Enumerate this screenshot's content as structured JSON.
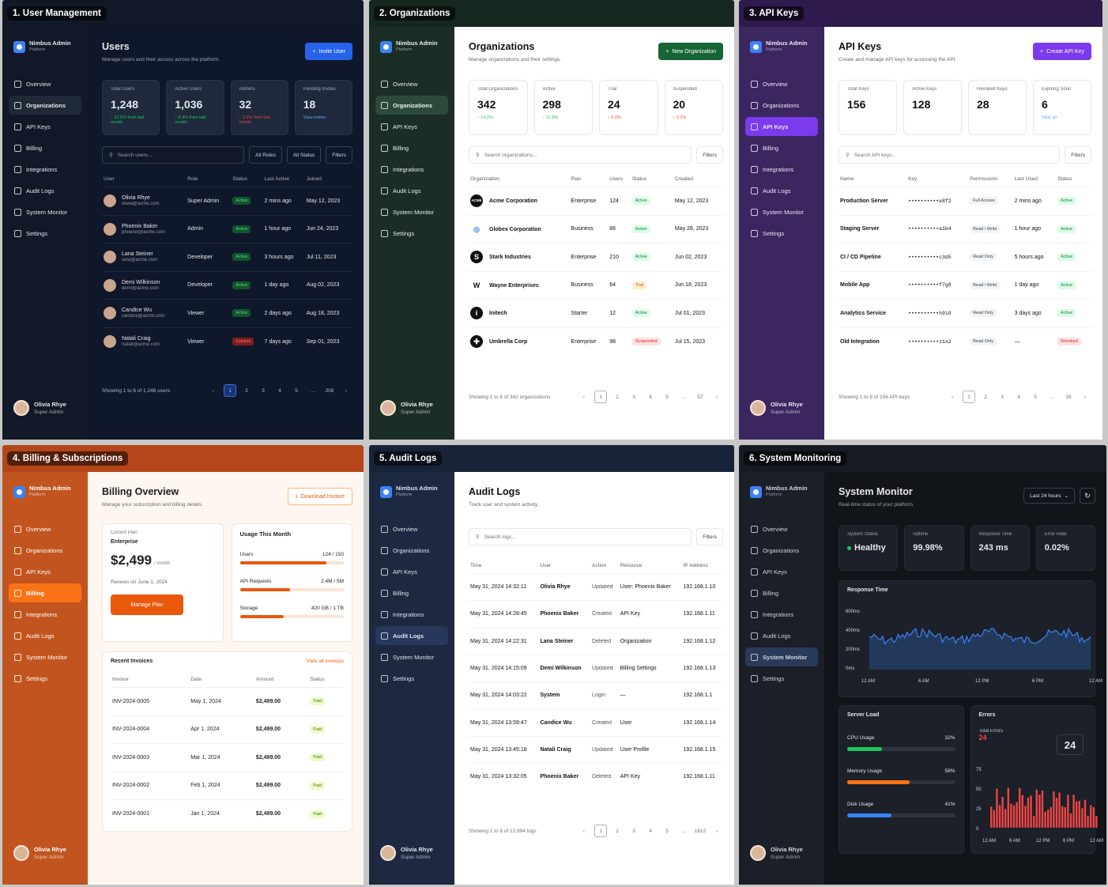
{
  "common": {
    "brand": "Nimbus Admin",
    "brand_sub": "Platform",
    "user_name": "Olivia Rhye",
    "user_role": "Super Admin",
    "nav": [
      "Overview",
      "Organizations",
      "API Keys",
      "Billing",
      "Integrations",
      "Audit Logs",
      "System Monitor",
      "Settings"
    ]
  },
  "p1": {
    "tag": "1. User Management",
    "title": "Users",
    "subtitle": "Manage users and their access across the platform.",
    "button": "Invite User",
    "stats": [
      {
        "label": "Total Users",
        "value": "1,248",
        "delta": "↑ 12.5% from last month"
      },
      {
        "label": "Active Users",
        "value": "1,036",
        "delta": "↑ 8.3% from last month"
      },
      {
        "label": "Admins",
        "value": "32",
        "delta": "↓ 3.1% from last month"
      },
      {
        "label": "Pending Invites",
        "value": "18",
        "delta": "View invites"
      }
    ],
    "search": "Search users...",
    "f1": "All Roles",
    "f2": "All Status",
    "f3": "Filters",
    "cols": [
      "User",
      "Role",
      "Status",
      "Last Active",
      "Joined"
    ],
    "rows": [
      [
        "Olivia Rhye",
        "olivia@acme.com",
        "Super Admin",
        "Active",
        "2 mins ago",
        "May 12, 2023"
      ],
      [
        "Phoenix Baker",
        "phoenix@acme.com",
        "Admin",
        "Active",
        "1 hour ago",
        "Jun 24, 2023"
      ],
      [
        "Lana Steiner",
        "lana@acme.com",
        "Developer",
        "Active",
        "3 hours ago",
        "Jul 11, 2023"
      ],
      [
        "Demi Wilkinson",
        "demi@acme.com",
        "Developer",
        "Active",
        "1 day ago",
        "Aug 02, 2023"
      ],
      [
        "Candice Wu",
        "candice@acme.com",
        "Viewer",
        "Active",
        "2 days ago",
        "Aug 18, 2023"
      ],
      [
        "Natali Craig",
        "natali@acme.com",
        "Viewer",
        "Inactive",
        "7 days ago",
        "Sep 01, 2023"
      ]
    ],
    "footer": "Showing 1 to 6 of 1,248 users",
    "pages": [
      "1",
      "2",
      "3",
      "4",
      "5",
      "...",
      "208"
    ]
  },
  "p2": {
    "tag": "2. Organizations",
    "title": "Organizations",
    "subtitle": "Manage organizations and their settings.",
    "button": "New Organization",
    "stats": [
      {
        "label": "Total Organizations",
        "value": "342",
        "delta": "↑ 14.2%"
      },
      {
        "label": "Active",
        "value": "298",
        "delta": "↑ 11.4%"
      },
      {
        "label": "Trial",
        "value": "24",
        "delta": "↓ 5.0%"
      },
      {
        "label": "Suspended",
        "value": "20",
        "delta": "↓ 2.1%"
      }
    ],
    "search": "Search organizations...",
    "f1": "Filters",
    "cols": [
      "Organization",
      "Plan",
      "Users",
      "Status",
      "Created"
    ],
    "rows": [
      [
        "Acme Corporation",
        "Enterprise",
        "124",
        "Active",
        "May 12, 2023"
      ],
      [
        "Globex Corporation",
        "Business",
        "86",
        "Active",
        "May 28, 2023"
      ],
      [
        "Stark Industries",
        "Enterprise",
        "210",
        "Active",
        "Jun 02, 2023"
      ],
      [
        "Wayne Enterprises",
        "Business",
        "64",
        "Trial",
        "Jun 18, 2023"
      ],
      [
        "Initech",
        "Starter",
        "12",
        "Active",
        "Jul 01, 2023"
      ],
      [
        "Umbrella Corp",
        "Enterprise",
        "98",
        "Suspended",
        "Jul 15, 2023"
      ]
    ],
    "logos": [
      "ACME",
      "◎",
      "S",
      "W",
      "i",
      "✚"
    ],
    "footer": "Showing 1 to 6 of 342 organizations",
    "pages": [
      "1",
      "2",
      "3",
      "4",
      "5",
      "...",
      "57"
    ]
  },
  "p3": {
    "tag": "3. API Keys",
    "title": "API Keys",
    "subtitle": "Create and manage API keys for accessing the API.",
    "button": "Create API Key",
    "stats": [
      {
        "label": "Total Keys",
        "value": "156",
        "delta": ""
      },
      {
        "label": "Active Keys",
        "value": "128",
        "delta": ""
      },
      {
        "label": "Revoked Keys",
        "value": "28",
        "delta": ""
      },
      {
        "label": "Expiring Soon",
        "value": "6",
        "delta": "View all"
      }
    ],
    "search": "Search API keys...",
    "f1": "Filters",
    "cols": [
      "Name",
      "Key",
      "Permissions",
      "Last Used",
      "Status"
    ],
    "rows": [
      [
        "Production Server",
        "••••••••••e8f2",
        "Full Access",
        "2 mins ago",
        "Active"
      ],
      [
        "Staging Server",
        "••••••••••a1b4",
        "Read / Write",
        "1 hour ago",
        "Active"
      ],
      [
        "CI / CD Pipeline",
        "••••••••••c3d5",
        "Read Only",
        "5 hours ago",
        "Active"
      ],
      [
        "Mobile App",
        "••••••••••f7g8",
        "Read / Write",
        "1 day ago",
        "Active"
      ],
      [
        "Analytics Service",
        "••••••••••h9i0",
        "Read Only",
        "3 days ago",
        "Active"
      ],
      [
        "Old Integration",
        "••••••••••z1x2",
        "Read Only",
        "—",
        "Revoked"
      ]
    ],
    "footer": "Showing 1 to 6 of 156 API keys",
    "pages": [
      "1",
      "2",
      "3",
      "4",
      "5",
      "...",
      "26"
    ]
  },
  "p4": {
    "tag": "4. Billing & Subscriptions",
    "title": "Billing Overview",
    "subtitle": "Manage your subscription and billing details.",
    "button": "Download Invoice",
    "plan_label": "Current Plan",
    "plan": "Enterprise",
    "price": "$2,499",
    "per": "/ month",
    "renews": "Renews on June 1, 2024",
    "manage": "Manage Plan",
    "usage_title": "Usage This Month",
    "usage": [
      {
        "label": "Users",
        "val": "124 / 150",
        "pct": 83
      },
      {
        "label": "API Requests",
        "val": "2.4M / 5M",
        "pct": 48
      },
      {
        "label": "Storage",
        "val": "420 GB / 1 TB",
        "pct": 42
      }
    ],
    "inv_title": "Recent Invoices",
    "inv_link": "View all invoices",
    "cols": [
      "Invoice",
      "Date",
      "Amount",
      "Status"
    ],
    "rows": [
      [
        "INV-2024-0005",
        "May 1, 2024",
        "$2,499.00",
        "Paid"
      ],
      [
        "INV-2024-0004",
        "Apr 1, 2024",
        "$2,499.00",
        "Paid"
      ],
      [
        "INV-2024-0003",
        "Mar 1, 2024",
        "$2,499.00",
        "Paid"
      ],
      [
        "INV-2024-0002",
        "Feb 1, 2024",
        "$2,499.00",
        "Paid"
      ],
      [
        "INV-2024-0001",
        "Jan 1, 2024",
        "$2,499.00",
        "Paid"
      ]
    ]
  },
  "p5": {
    "tag": "5. Audit Logs",
    "title": "Audit Logs",
    "subtitle": "Track user and system activity.",
    "search": "Search logs...",
    "f1": "Filters",
    "cols": [
      "Time",
      "User",
      "Action",
      "Resource",
      "IP Address"
    ],
    "rows": [
      [
        "May 31, 2024 14:32:11",
        "Olivia Rhye",
        "Updated",
        "User: Phoenix Baker",
        "192.168.1.10"
      ],
      [
        "May 31, 2024 14:28:45",
        "Phoenix Baker",
        "Created",
        "API Key",
        "192.168.1.11"
      ],
      [
        "May 31, 2024 14:22:31",
        "Lana Steiner",
        "Deleted",
        "Organization",
        "192.168.1.12"
      ],
      [
        "May 31, 2024 14:15:09",
        "Demi Wilkinson",
        "Updated",
        "Billing Settings",
        "192.168.1.13"
      ],
      [
        "May 31, 2024 14:03:22",
        "System",
        "Login",
        "—",
        "192.168.1.1"
      ],
      [
        "May 31, 2024 13:59:47",
        "Candice Wu",
        "Created",
        "User",
        "192.168.1.14"
      ],
      [
        "May 31, 2024 13:45:18",
        "Natali Craig",
        "Updated",
        "User Profile",
        "192.168.1.15"
      ],
      [
        "May 31, 2024 13:32:05",
        "Phoenix Baker",
        "Deleted",
        "API Key",
        "192.168.1.11"
      ]
    ],
    "footer": "Showing 1 to 8 of 12,894 logs",
    "pages": [
      "1",
      "2",
      "3",
      "4",
      "5",
      "...",
      "1612"
    ]
  },
  "p6": {
    "tag": "6. System Monitoring",
    "title": "System Monitor",
    "subtitle": "Real-time status of your platform.",
    "range": "Last 24 hours",
    "stats": [
      {
        "label": "System Status",
        "value": "Healthy"
      },
      {
        "label": "Uptime",
        "value": "99.98%"
      },
      {
        "label": "Response Time",
        "value": "243 ms"
      },
      {
        "label": "Error Rate",
        "value": "0.02%"
      }
    ],
    "rt_title": "Response Time",
    "rt_y": [
      "600ms",
      "400ms",
      "200ms",
      "0ms"
    ],
    "rt_x": [
      "12 AM",
      "6 AM",
      "12 PM",
      "6 PM",
      "12 AM"
    ],
    "load_title": "Server Load",
    "load": [
      {
        "label": "CPU Usage",
        "val": "32%",
        "pct": 32,
        "color": "#22c55e"
      },
      {
        "label": "Memory Usage",
        "val": "58%",
        "pct": 58,
        "color": "#f97316"
      },
      {
        "label": "Disk Usage",
        "val": "41%",
        "pct": 41,
        "color": "#3b82f6"
      }
    ],
    "err_title": "Errors",
    "err_label": "Total Errors",
    "err_val": "24",
    "err_big": "24",
    "err_y": [
      "75",
      "50",
      "25",
      "0"
    ],
    "err_x": [
      "12 AM",
      "6 AM",
      "12 PM",
      "6 PM",
      "12 AM"
    ]
  }
}
